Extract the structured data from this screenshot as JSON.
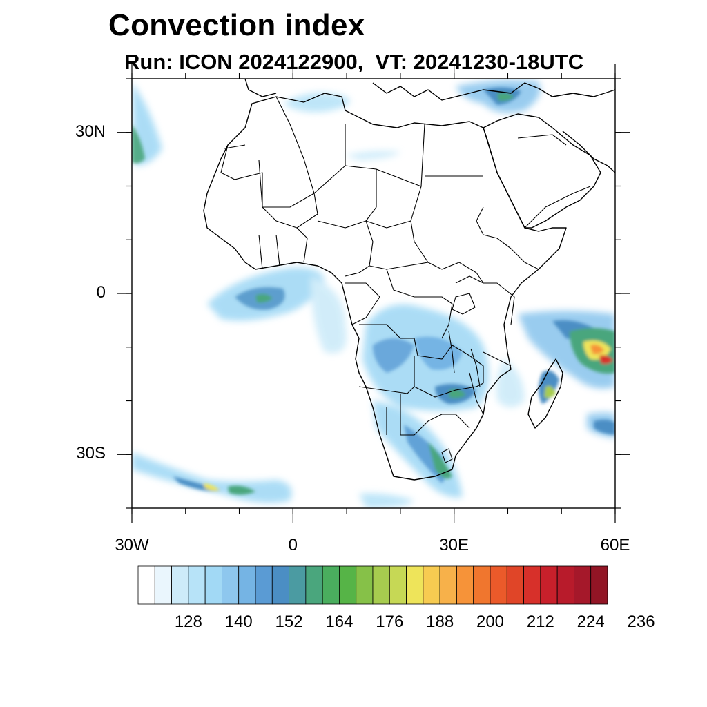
{
  "title": "Convection index",
  "subtitle": "Run: ICON 2024122900,  VT: 20241230-18UTC",
  "map": {
    "lon_range": [
      -30,
      60
    ],
    "lat_range": [
      -40,
      40
    ],
    "lat_ticks": [
      {
        "lat": 30,
        "label": "30N"
      },
      {
        "lat": 0,
        "label": "0"
      },
      {
        "lat": -30,
        "label": "30S"
      }
    ],
    "lon_ticks": [
      {
        "lon": -30,
        "label": "30W"
      },
      {
        "lon": 0,
        "label": "0"
      },
      {
        "lon": 30,
        "label": "30E"
      },
      {
        "lon": 60,
        "label": "60E"
      }
    ],
    "minor_step_deg": 10
  },
  "colorbar": {
    "labels": [
      "128",
      "140",
      "152",
      "164",
      "176",
      "188",
      "200",
      "212",
      "224",
      "236"
    ],
    "colors": [
      "#ffffff",
      "#eaf6fd",
      "#cdebf9",
      "#b7e3f8",
      "#a2d9f5",
      "#8ec7ee",
      "#75b4e4",
      "#5a9bd4",
      "#4b8ec4",
      "#4b9ba2",
      "#4aa67d",
      "#4aae5e",
      "#56b447",
      "#86c148",
      "#a7cc4f",
      "#c6d855",
      "#eee45a",
      "#f7cb51",
      "#f7b14a",
      "#f69339",
      "#f0762e",
      "#eb5a2a",
      "#e04528",
      "#d7302a",
      "#c8202b",
      "#b81b2b",
      "#a5182a",
      "#921525"
    ],
    "colors_note": "fill colours for the colourbar boxes"
  },
  "colors": {
    "coast": "#000000",
    "light": "#b7e3f8",
    "medium": "#75b4e4",
    "dark": "#4b8ec4",
    "green": "#4aa67d",
    "yellow": "#eee45a",
    "orange": "#f69339",
    "red": "#d7302a"
  }
}
